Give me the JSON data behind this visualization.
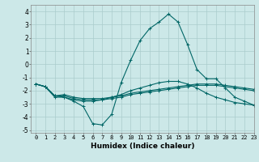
{
  "xlabel": "Humidex (Indice chaleur)",
  "ylabel": "",
  "bg_color": "#cce8e8",
  "grid_color": "#aacccc",
  "line_color": "#006666",
  "xlim": [
    -0.5,
    23
  ],
  "ylim": [
    -5.2,
    4.5
  ],
  "yticks": [
    -5,
    -4,
    -3,
    -2,
    -1,
    0,
    1,
    2,
    3,
    4
  ],
  "xticks": [
    0,
    1,
    2,
    3,
    4,
    5,
    6,
    7,
    8,
    9,
    10,
    11,
    12,
    13,
    14,
    15,
    16,
    17,
    18,
    19,
    20,
    21,
    22,
    23
  ],
  "series": [
    {
      "x": [
        0,
        1,
        2,
        3,
        4,
        5,
        6,
        7,
        8,
        9,
        10,
        11,
        12,
        13,
        14,
        15,
        16,
        17,
        18,
        19,
        20,
        21,
        22,
        23
      ],
      "y": [
        -1.5,
        -1.7,
        -2.5,
        -2.5,
        -2.8,
        -3.2,
        -4.5,
        -4.6,
        -3.8,
        -1.4,
        0.3,
        1.8,
        2.7,
        3.2,
        3.8,
        3.2,
        1.5,
        -0.4,
        -1.1,
        -1.1,
        -1.8,
        -2.5,
        -2.8,
        -3.1
      ]
    },
    {
      "x": [
        0,
        1,
        2,
        3,
        4,
        5,
        6,
        7,
        8,
        9,
        10,
        11,
        12,
        13,
        14,
        15,
        16,
        17,
        18,
        19,
        20,
        21,
        22,
        23
      ],
      "y": [
        -1.5,
        -1.7,
        -2.4,
        -2.3,
        -2.5,
        -2.6,
        -2.6,
        -2.6,
        -2.5,
        -2.4,
        -2.2,
        -2.1,
        -2.0,
        -1.9,
        -1.8,
        -1.7,
        -1.6,
        -1.5,
        -1.5,
        -1.5,
        -1.6,
        -1.7,
        -1.8,
        -1.9
      ]
    },
    {
      "x": [
        0,
        1,
        2,
        3,
        4,
        5,
        6,
        7,
        8,
        9,
        10,
        11,
        12,
        13,
        14,
        15,
        16,
        17,
        18,
        19,
        20,
        21,
        22,
        23
      ],
      "y": [
        -1.5,
        -1.7,
        -2.4,
        -2.4,
        -2.6,
        -2.7,
        -2.7,
        -2.7,
        -2.6,
        -2.5,
        -2.3,
        -2.2,
        -2.1,
        -2.0,
        -1.9,
        -1.8,
        -1.7,
        -1.6,
        -1.6,
        -1.6,
        -1.7,
        -1.8,
        -1.9,
        -2.0
      ]
    },
    {
      "x": [
        0,
        1,
        2,
        3,
        4,
        5,
        6,
        7,
        8,
        9,
        10,
        11,
        12,
        13,
        14,
        15,
        16,
        17,
        18,
        19,
        20,
        21,
        22,
        23
      ],
      "y": [
        -1.5,
        -1.7,
        -2.4,
        -2.5,
        -2.7,
        -2.8,
        -2.8,
        -2.7,
        -2.5,
        -2.3,
        -2.0,
        -1.8,
        -1.6,
        -1.4,
        -1.3,
        -1.3,
        -1.5,
        -1.8,
        -2.2,
        -2.5,
        -2.7,
        -2.9,
        -3.0,
        -3.1
      ]
    }
  ]
}
